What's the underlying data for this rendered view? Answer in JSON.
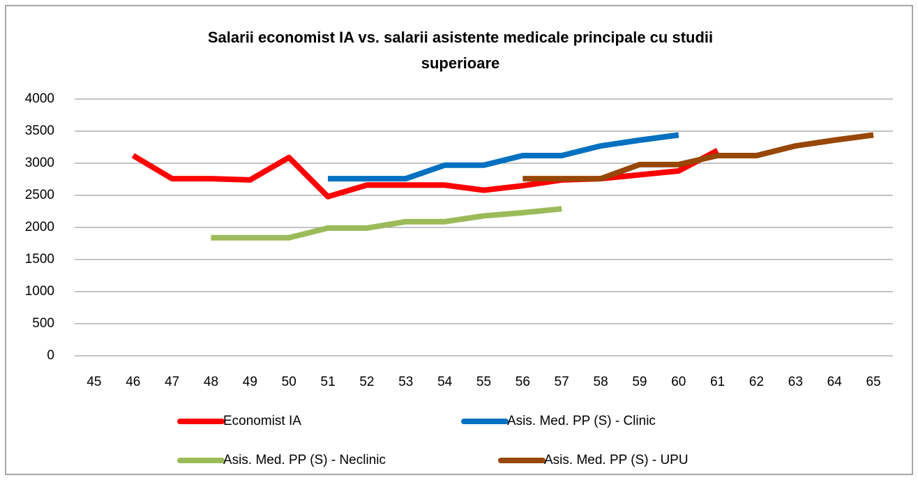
{
  "chart_data": {
    "type": "line",
    "title": [
      "Salarii economist IA vs. salarii asistente medicale principale cu studii",
      "superioare"
    ],
    "categories": [
      "45",
      "46",
      "47",
      "48",
      "49",
      "50",
      "51",
      "52",
      "53",
      "54",
      "55",
      "56",
      "57",
      "58",
      "59",
      "60",
      "61",
      "62",
      "63",
      "64",
      "65"
    ],
    "series": [
      {
        "name": "Economist IA",
        "color": "#ff0000",
        "values": [
          null,
          3120,
          2760,
          2760,
          2740,
          3090,
          2480,
          2660,
          2660,
          2660,
          2580,
          2650,
          2740,
          2760,
          2820,
          2880,
          3200,
          null,
          null,
          null,
          null
        ]
      },
      {
        "name": "Asis. Med. PP (S) - Clinic",
        "color": "#0070c0",
        "values": [
          null,
          null,
          null,
          null,
          null,
          null,
          2760,
          2760,
          2760,
          2970,
          2970,
          3120,
          3120,
          3270,
          3360,
          3440,
          null,
          null,
          null,
          null,
          null
        ]
      },
      {
        "name": "Asis. Med. PP (S) - Neclinic",
        "color": "#9bbb59",
        "values": [
          null,
          null,
          null,
          1840,
          1840,
          1840,
          1990,
          1990,
          2090,
          2090,
          2180,
          2230,
          2290,
          null,
          null,
          null,
          null,
          null,
          null,
          null,
          null
        ]
      },
      {
        "name": "Asis. Med. PP (S) - UPU",
        "color": "#974706",
        "values": [
          null,
          null,
          null,
          null,
          null,
          null,
          null,
          null,
          null,
          null,
          null,
          2760,
          2760,
          2760,
          2980,
          2980,
          3120,
          3120,
          3270,
          3360,
          3440
        ]
      }
    ],
    "ylim": [
      0,
      4000
    ],
    "yticks": [
      0,
      500,
      1000,
      1500,
      2000,
      2500,
      3000,
      3500,
      4000
    ],
    "grid": true,
    "legend": "bottom"
  }
}
